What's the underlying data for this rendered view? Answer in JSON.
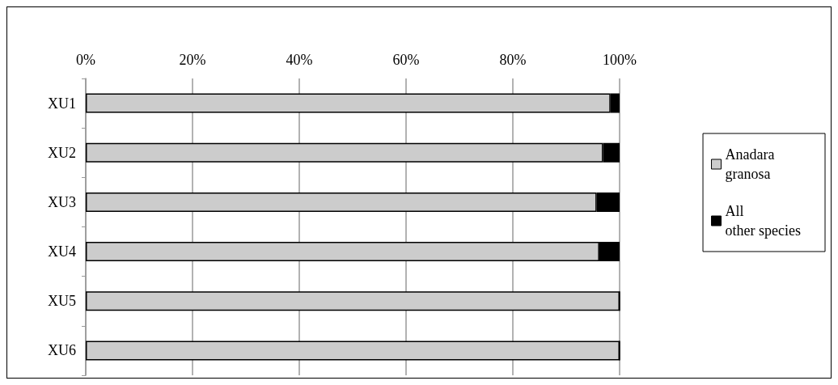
{
  "chart_data": {
    "type": "bar",
    "orientation": "horizontal",
    "stacked": true,
    "categories": [
      "XU1",
      "XU2",
      "XU3",
      "XU4",
      "XU5",
      "XU6"
    ],
    "series": [
      {
        "name": "Anadara granosa",
        "color": "#cccccc",
        "values": [
          98.3,
          96.9,
          95.7,
          96.2,
          100,
          100
        ]
      },
      {
        "name": "All other species",
        "color": "#000000",
        "values": [
          1.7,
          3.1,
          4.3,
          3.8,
          0,
          0
        ]
      }
    ],
    "xlim": [
      0,
      100
    ],
    "xticks": [
      {
        "value": 0,
        "label": "0%"
      },
      {
        "value": 20,
        "label": "20%"
      },
      {
        "value": 40,
        "label": "40%"
      },
      {
        "value": 60,
        "label": "60%"
      },
      {
        "value": 80,
        "label": "80%"
      },
      {
        "value": 100,
        "label": "100%"
      }
    ],
    "grid": "x",
    "legend": "right"
  }
}
